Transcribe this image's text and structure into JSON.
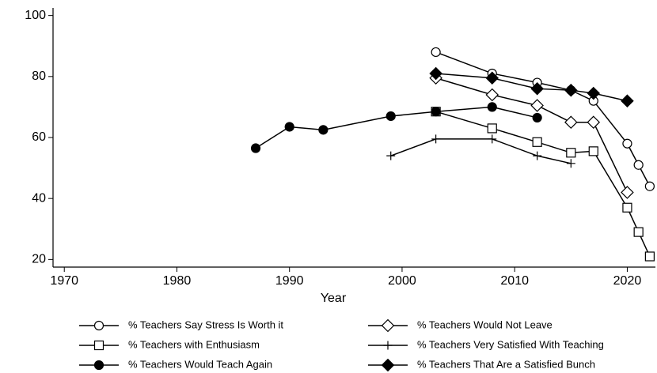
{
  "chart_data": {
    "type": "line",
    "xlabel": "Year",
    "xlim": [
      1969,
      2022.5
    ],
    "xticks": [
      1970,
      1980,
      1990,
      2000,
      2010,
      2020
    ],
    "ylim": [
      17.5,
      102.5
    ],
    "yticks": [
      20,
      40,
      60,
      80,
      100
    ],
    "grid": false,
    "legend": "bottom",
    "series": [
      {
        "name": "% Teachers Say Stress Is Worth it",
        "color": "#000000",
        "marker": "circle-open",
        "x": [
          2003,
          2008,
          2012,
          2015,
          2017,
          2020,
          2021,
          2022
        ],
        "values": [
          88,
          81,
          78,
          75.5,
          72,
          58,
          51,
          44
        ]
      },
      {
        "name": "% Teachers Would Not Leave",
        "color": "#000000",
        "marker": "diamond-open",
        "x": [
          2003,
          2008,
          2012,
          2015,
          2017,
          2020
        ],
        "values": [
          79.5,
          74,
          70.5,
          65,
          65,
          42
        ]
      },
      {
        "name": "% Teachers with Enthusiasm",
        "color": "#000000",
        "marker": "square-open",
        "x": [
          2003,
          2008,
          2012,
          2015,
          2017,
          2020,
          2021,
          2022
        ],
        "values": [
          68.5,
          63,
          58.5,
          55,
          55.5,
          37,
          29,
          21
        ]
      },
      {
        "name": "% Teachers Very Satisfied With Teaching",
        "color": "#000000",
        "marker": "plus",
        "x": [
          1999,
          2003,
          2008,
          2012,
          2015
        ],
        "values": [
          54,
          59.5,
          59.5,
          54,
          51.5
        ]
      },
      {
        "name": "% Teachers Would Teach Again",
        "color": "#000000",
        "marker": "circle-filled",
        "x": [
          1987,
          1990,
          1993,
          1999,
          2003,
          2008,
          2012
        ],
        "values": [
          56.5,
          63.5,
          62.5,
          67,
          68.5,
          70,
          66.5
        ]
      },
      {
        "name": "% Teachers That Are a Satisfied Bunch",
        "color": "#000000",
        "marker": "diamond-filled",
        "x": [
          2003,
          2008,
          2012,
          2015,
          2017,
          2020
        ],
        "values": [
          81,
          79.5,
          76,
          75.5,
          74.5,
          72
        ]
      }
    ]
  }
}
